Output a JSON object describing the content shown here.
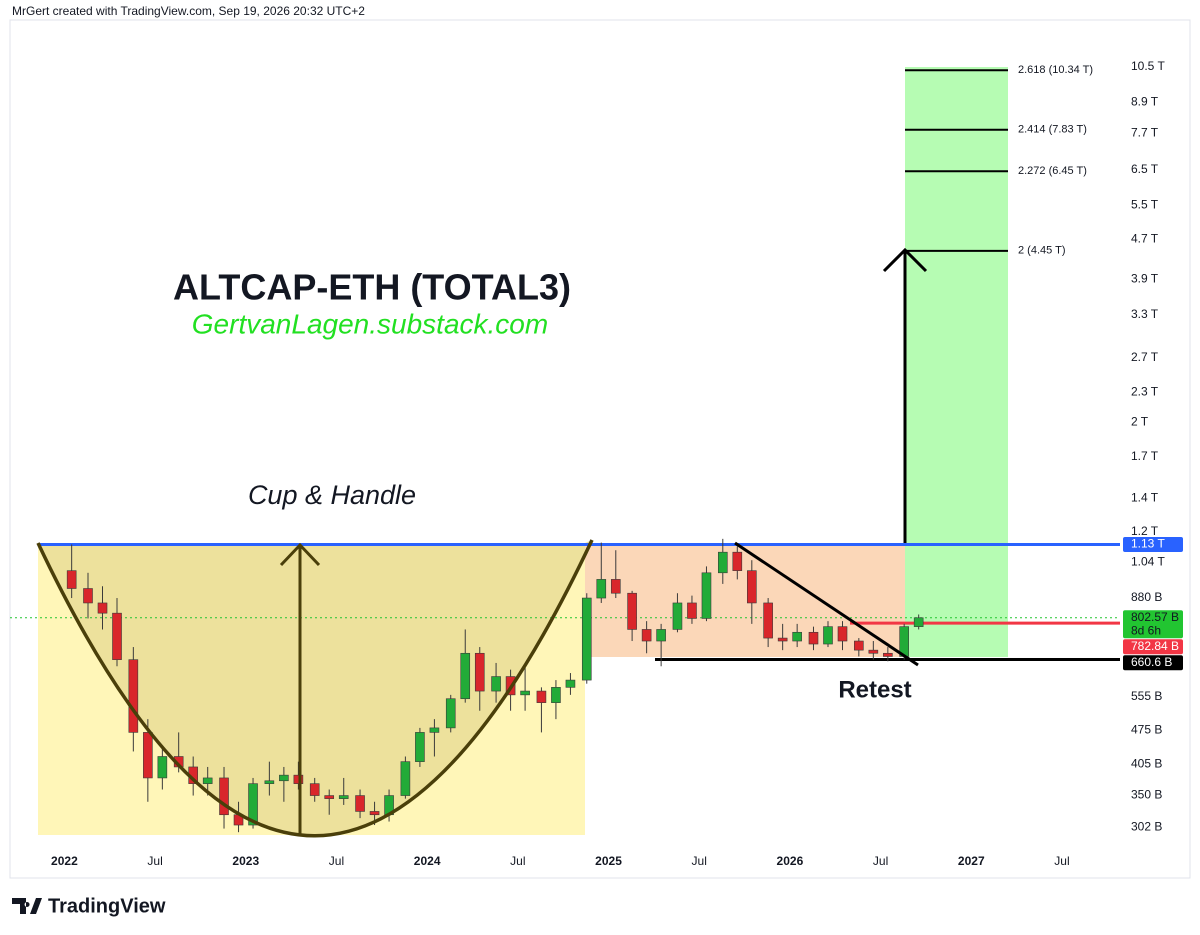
{
  "header": "MrGert created with TradingView.com, Sep 19, 2026 20:32 UTC+2",
  "footer": "TradingView",
  "chart_data": {
    "type": "candlestick",
    "title": "ALTCAP-ETH (TOTAL3)",
    "subtitle": "GertvanLagen.substack.com",
    "annotations": [
      "Cup & Handle",
      "Retest"
    ],
    "log_scale": true,
    "up_color": "#22ab38",
    "down_color": "#d9262b",
    "x": [
      2022.04,
      2022.13,
      2022.21,
      2022.29,
      2022.38,
      2022.46,
      2022.54,
      2022.63,
      2022.71,
      2022.79,
      2022.88,
      2022.96,
      2023.04,
      2023.13,
      2023.21,
      2023.29,
      2023.38,
      2023.46,
      2023.54,
      2023.63,
      2023.71,
      2023.79,
      2023.88,
      2023.96,
      2024.04,
      2024.13,
      2024.21,
      2024.29,
      2024.38,
      2024.46,
      2024.54,
      2024.63,
      2024.71,
      2024.79,
      2024.88,
      2024.96,
      2025.04,
      2025.13,
      2025.21,
      2025.29,
      2025.38,
      2025.46,
      2025.54,
      2025.63,
      2025.71,
      2025.79,
      2025.88,
      2025.96,
      2026.04,
      2026.13,
      2026.21,
      2026.29,
      2026.38,
      2026.46,
      2026.54,
      2026.63,
      2026.71
    ],
    "open": [
      1000,
      920,
      860,
      820,
      660,
      470,
      380,
      420,
      400,
      370,
      380,
      320,
      305,
      370,
      375,
      385,
      370,
      350,
      345,
      350,
      325,
      320,
      350,
      410,
      470,
      480,
      550,
      680,
      570,
      610,
      560,
      570,
      540,
      580,
      600,
      880,
      960,
      900,
      760,
      720,
      760,
      860,
      800,
      990,
      1090,
      1000,
      860,
      730,
      720,
      750,
      710,
      770,
      720,
      690,
      680,
      670,
      770
    ],
    "high": [
      1130,
      990,
      930,
      880,
      700,
      500,
      440,
      470,
      420,
      400,
      400,
      340,
      380,
      410,
      400,
      410,
      380,
      360,
      380,
      360,
      340,
      360,
      420,
      480,
      500,
      560,
      760,
      700,
      650,
      630,
      640,
      580,
      600,
      620,
      900,
      1140,
      1100,
      910,
      790,
      780,
      900,
      890,
      1020,
      1160,
      1120,
      1050,
      880,
      780,
      780,
      770,
      790,
      790,
      730,
      720,
      700,
      780,
      815
    ],
    "low": [
      880,
      800,
      760,
      640,
      430,
      340,
      360,
      390,
      350,
      350,
      300,
      295,
      300,
      350,
      340,
      360,
      340,
      320,
      335,
      315,
      305,
      310,
      345,
      400,
      420,
      470,
      540,
      520,
      540,
      520,
      520,
      470,
      500,
      560,
      590,
      860,
      880,
      720,
      680,
      640,
      750,
      780,
      790,
      940,
      960,
      780,
      700,
      690,
      700,
      690,
      700,
      690,
      670,
      660,
      655,
      660,
      760
    ],
    "close": [
      920,
      860,
      820,
      660,
      470,
      380,
      420,
      400,
      370,
      380,
      320,
      305,
      370,
      375,
      385,
      370,
      350,
      345,
      350,
      325,
      320,
      350,
      410,
      470,
      480,
      550,
      680,
      570,
      610,
      560,
      570,
      540,
      580,
      600,
      880,
      960,
      900,
      760,
      720,
      760,
      860,
      800,
      990,
      1090,
      1000,
      860,
      730,
      720,
      750,
      710,
      770,
      720,
      690,
      680,
      670,
      770,
      802.57
    ],
    "xlim": [
      2021.7,
      2027.82
    ],
    "xticks": [
      {
        "value": 2022,
        "label": "2022"
      },
      {
        "value": 2022.5,
        "label": "Jul"
      },
      {
        "value": 2023,
        "label": "2023"
      },
      {
        "value": 2023.5,
        "label": "Jul"
      },
      {
        "value": 2024,
        "label": "2024"
      },
      {
        "value": 2024.5,
        "label": "Jul"
      },
      {
        "value": 2025,
        "label": "2025"
      },
      {
        "value": 2025.5,
        "label": "Jul"
      },
      {
        "value": 2026,
        "label": "2026"
      },
      {
        "value": 2026.5,
        "label": "Jul"
      },
      {
        "value": 2027,
        "label": "2027"
      },
      {
        "value": 2027.5,
        "label": "Jul"
      }
    ],
    "ylim": [
      274,
      13070
    ],
    "yticks": [
      {
        "value": 10500,
        "label": "10.5 T"
      },
      {
        "value": 8900,
        "label": "8.9 T"
      },
      {
        "value": 7700,
        "label": "7.7 T"
      },
      {
        "value": 6500,
        "label": "6.5 T"
      },
      {
        "value": 5500,
        "label": "5.5 T"
      },
      {
        "value": 4700,
        "label": "4.7 T"
      },
      {
        "value": 3900,
        "label": "3.9 T"
      },
      {
        "value": 3300,
        "label": "3.3 T"
      },
      {
        "value": 2700,
        "label": "2.7 T"
      },
      {
        "value": 2300,
        "label": "2.3 T"
      },
      {
        "value": 2000,
        "label": "2 T"
      },
      {
        "value": 1700,
        "label": "1.7 T"
      },
      {
        "value": 1400,
        "label": "1.4 T"
      },
      {
        "value": 1200,
        "label": "1.2 T"
      },
      {
        "value": 1040,
        "label": "1.04 T"
      },
      {
        "value": 880,
        "label": "880 B"
      },
      {
        "value": 555,
        "label": "555 B"
      },
      {
        "value": 475,
        "label": "475 B"
      },
      {
        "value": 405,
        "label": "405 B"
      },
      {
        "value": 350,
        "label": "350 B"
      },
      {
        "value": 302,
        "label": "302 B"
      }
    ],
    "fib_levels": [
      {
        "value": 10340,
        "label": "2.618 (10.34 T)"
      },
      {
        "value": 7830,
        "label": "2.414 (7.83 T)"
      },
      {
        "value": 6450,
        "label": "2.272 (6.45 T)"
      },
      {
        "value": 4450,
        "label": "2 (4.45 T)"
      }
    ],
    "price_labels": [
      {
        "value": 1130,
        "label": "1.13 T",
        "color": "#2962ff"
      },
      {
        "value": 802.57,
        "label": "802.57 B",
        "color": "#22c531",
        "countdown": "8d 6h"
      },
      {
        "value": 782.84,
        "label": "782.84 B",
        "color": "#f23645"
      },
      {
        "value": 660.6,
        "label": "660.6 B",
        "color": "#000000"
      }
    ]
  }
}
